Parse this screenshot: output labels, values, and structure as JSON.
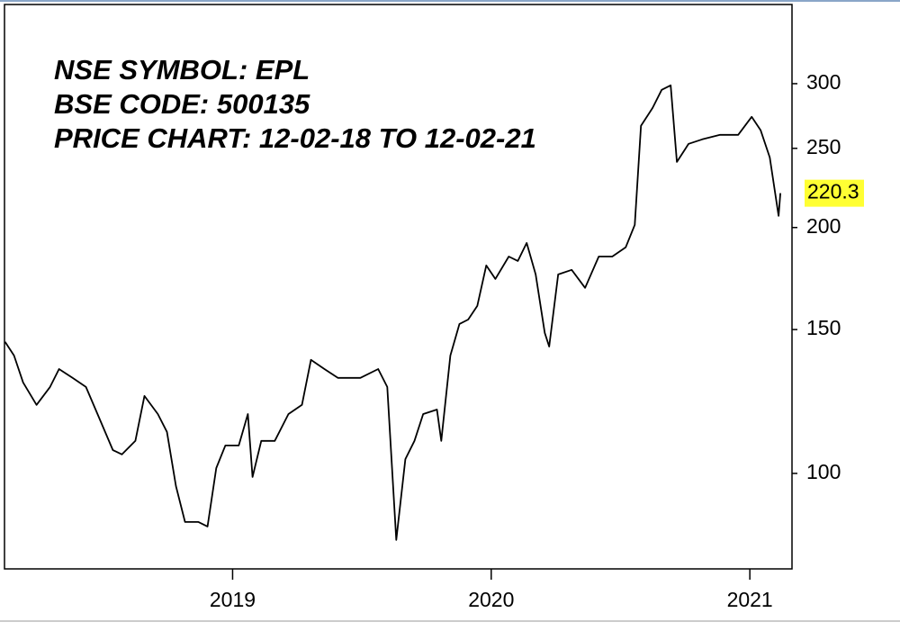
{
  "chart_data": {
    "type": "line",
    "annotations": [
      "NSE SYMBOL: EPL",
      "BSE CODE: 500135",
      "PRICE CHART: 12-02-18 TO 12-02-21"
    ],
    "x": [
      2018.12,
      2018.155,
      2018.19,
      2018.242,
      2018.294,
      2018.329,
      2018.381,
      2018.433,
      2018.485,
      2018.537,
      2018.572,
      2018.624,
      2018.659,
      2018.711,
      2018.746,
      2018.781,
      2018.816,
      2018.868,
      2018.903,
      2018.937,
      2018.972,
      2019.024,
      2019.059,
      2019.077,
      2019.111,
      2019.163,
      2019.216,
      2019.268,
      2019.303,
      2019.355,
      2019.407,
      2019.494,
      2019.563,
      2019.598,
      2019.633,
      2019.668,
      2019.703,
      2019.737,
      2019.79,
      2019.807,
      2019.842,
      2019.877,
      2019.911,
      2019.946,
      2019.981,
      2020.016,
      2020.068,
      2020.103,
      2020.137,
      2020.172,
      2020.207,
      2020.224,
      2020.259,
      2020.311,
      2020.363,
      2020.416,
      2020.468,
      2020.52,
      2020.555,
      2020.579,
      2020.624,
      2020.659,
      2020.694,
      2020.718,
      2020.763,
      2020.816,
      2020.885,
      2020.955,
      2021.007,
      2021.042,
      2021.077,
      2021.111,
      2021.118
    ],
    "series": [
      {
        "name": "EPL",
        "color": "#000000",
        "values": [
          144.9,
          139.4,
          129.2,
          121.3,
          127.6,
          134.2,
          130.9,
          127.6,
          116.7,
          106.8,
          105.5,
          109.6,
          124.4,
          118.2,
          112.4,
          96.5,
          87.2,
          87.2,
          86.1,
          101.5,
          108.2,
          108.2,
          118.2,
          99.0,
          109.6,
          109.6,
          118.2,
          121.3,
          137.7,
          134.2,
          130.9,
          130.9,
          134.2,
          127.6,
          82.9,
          104.1,
          109.6,
          118.2,
          119.7,
          109.6,
          139.4,
          152.4,
          154.3,
          160.3,
          179.7,
          173.0,
          184.3,
          182.0,
          191.5,
          175.2,
          148.6,
          143.0,
          175.2,
          177.5,
          168.7,
          184.3,
          184.3,
          189.1,
          201.5,
          266.4,
          280.2,
          294.8,
          298.6,
          240.6,
          253.2,
          256.4,
          259.7,
          259.7,
          273.2,
          263.0,
          243.7,
          206.7,
          220.3
        ]
      }
    ],
    "xlim": [
      2018.118,
      2021.163
    ],
    "xticks": [
      2019,
      2020,
      2021
    ],
    "ylim": [
      76.4,
      375
    ],
    "yticks": [
      100,
      150,
      200,
      250,
      300
    ],
    "ylog": true,
    "yaxis_side": "right",
    "last_value_color": "#ffff33"
  }
}
